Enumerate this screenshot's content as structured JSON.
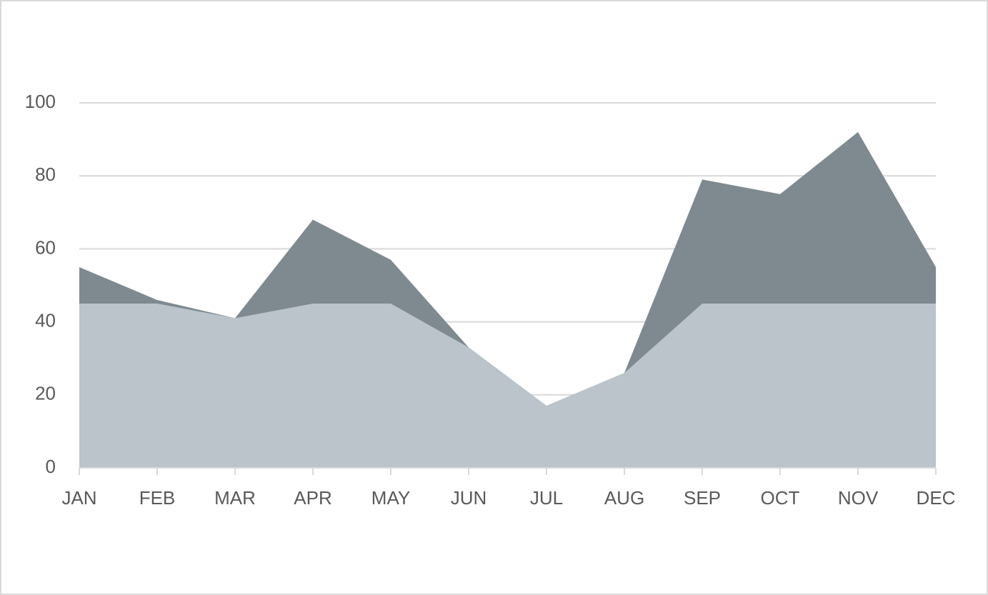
{
  "chart_data": {
    "type": "area",
    "categories": [
      "JAN",
      "FEB",
      "MAR",
      "APR",
      "MAY",
      "JUN",
      "JUL",
      "AUG",
      "SEP",
      "OCT",
      "NOV",
      "DEC"
    ],
    "series": [
      {
        "color": "#7f8a90",
        "values": [
          55,
          46,
          41,
          68,
          57,
          33,
          17,
          26,
          79,
          75,
          92,
          55
        ]
      },
      {
        "color": "#bac4ca",
        "values": [
          45,
          45,
          41,
          45,
          45,
          33,
          17,
          26,
          45,
          45,
          45,
          45
        ]
      }
    ],
    "ylim": [
      0,
      100
    ],
    "yticks": [
      0,
      20,
      40,
      60,
      80,
      100
    ],
    "grid": true
  }
}
